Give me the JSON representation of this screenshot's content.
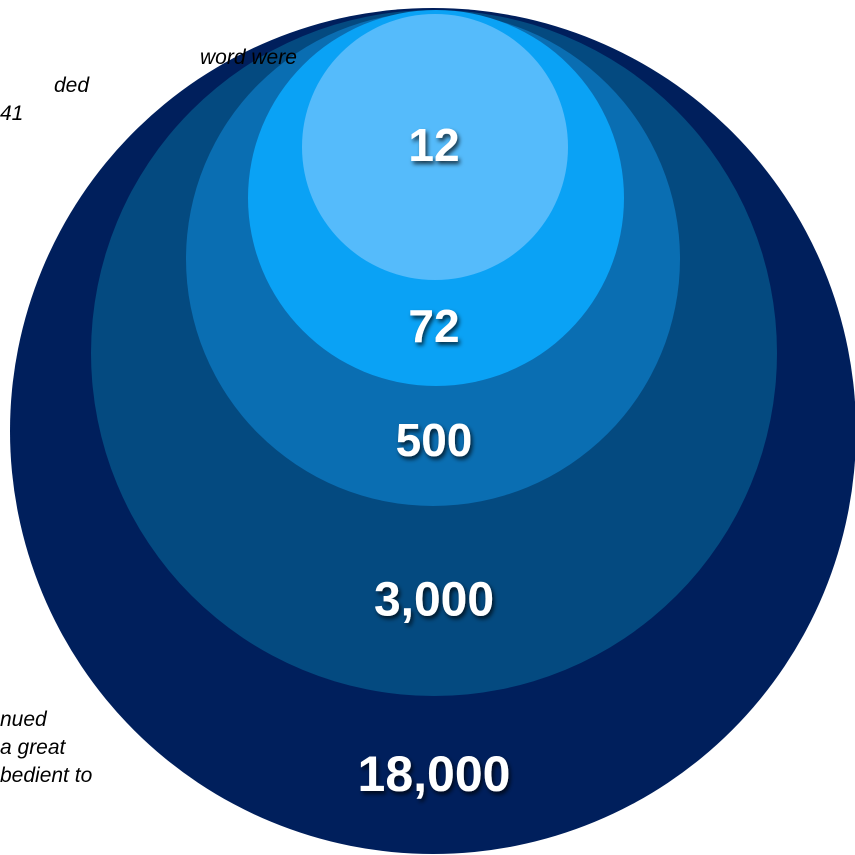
{
  "rings": [
    {
      "label": "18,000",
      "color": "#001f5c"
    },
    {
      "label": "3,000",
      "color": "#044a80"
    },
    {
      "label": "500",
      "color": "#0a6eb2"
    },
    {
      "label": "72",
      "color": "#0aa2f5"
    },
    {
      "label": "12",
      "color": "#55bbfb"
    }
  ],
  "notes": {
    "top": [
      "word were",
      "ded",
      "41"
    ],
    "bottom": [
      "nued",
      "a great",
      "bedient to"
    ]
  }
}
